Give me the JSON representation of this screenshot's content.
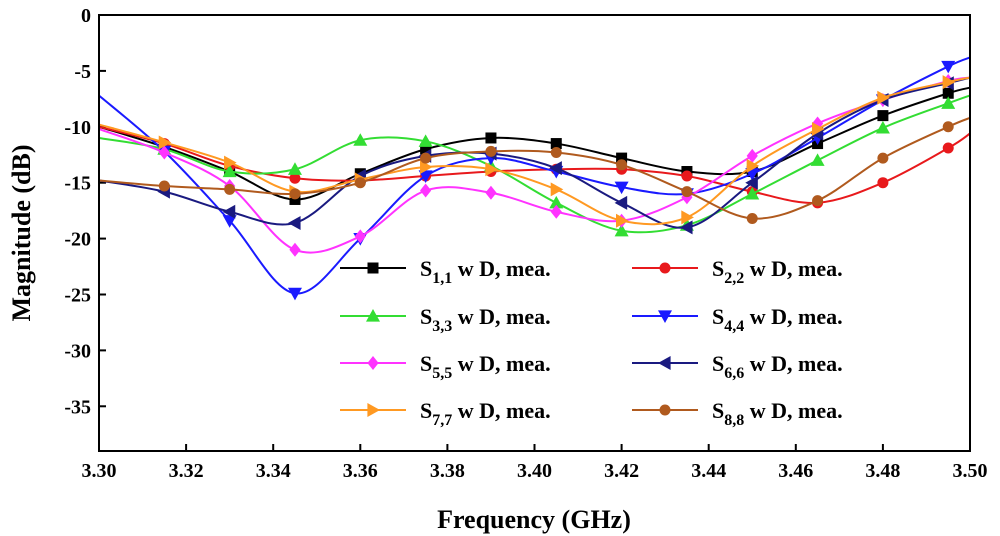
{
  "chart_data": {
    "type": "line",
    "title": "",
    "xlabel": "Frequency (GHz)",
    "ylabel": "Magnitude (dB)",
    "xlim": [
      3.3,
      3.5
    ],
    "ylim": [
      -39,
      0
    ],
    "xticks": [
      3.3,
      3.32,
      3.34,
      3.36,
      3.38,
      3.4,
      3.42,
      3.44,
      3.46,
      3.48,
      3.5
    ],
    "xtick_labels": [
      "3.30",
      "3.32",
      "3.34",
      "3.36",
      "3.38",
      "3.40",
      "3.42",
      "3.44",
      "3.46",
      "3.48",
      "3.50"
    ],
    "yticks": [
      0,
      -5,
      -10,
      -15,
      -20,
      -25,
      -30,
      -35
    ],
    "ytick_labels": [
      "0",
      "-5",
      "-10",
      "-15",
      "-20",
      "-25",
      "-30",
      "-35"
    ],
    "legend_position": "bottom-right",
    "series": [
      {
        "name": "S1,1 w D, mea.",
        "sub": "1,1",
        "color": "#000000",
        "marker": "square",
        "x": [
          3.3,
          3.315,
          3.33,
          3.345,
          3.36,
          3.375,
          3.39,
          3.405,
          3.42,
          3.435,
          3.45,
          3.465,
          3.48,
          3.495,
          3.5
        ],
        "y": [
          -10.0,
          -11.8,
          -14.0,
          -16.5,
          -14.2,
          -12.0,
          -11.0,
          -11.5,
          -12.8,
          -14.0,
          -14.0,
          -11.5,
          -9.0,
          -7.0,
          -6.5
        ]
      },
      {
        "name": "S2,2 w D, mea.",
        "sub": "2,2",
        "color": "#e8191c",
        "marker": "circle",
        "x": [
          3.3,
          3.315,
          3.33,
          3.345,
          3.36,
          3.375,
          3.39,
          3.405,
          3.42,
          3.435,
          3.45,
          3.465,
          3.48,
          3.495,
          3.5
        ],
        "y": [
          -10.0,
          -11.5,
          -13.5,
          -14.6,
          -14.8,
          -14.4,
          -14.0,
          -13.8,
          -13.8,
          -14.4,
          -15.8,
          -16.8,
          -15.0,
          -11.9,
          -10.6
        ]
      },
      {
        "name": "S3,3 w D, mea.",
        "sub": "3,3",
        "color": "#33dd33",
        "marker": "triangle-up",
        "x": [
          3.3,
          3.315,
          3.33,
          3.345,
          3.36,
          3.375,
          3.39,
          3.405,
          3.42,
          3.435,
          3.45,
          3.465,
          3.48,
          3.495,
          3.5
        ],
        "y": [
          -11.0,
          -12.0,
          -14.0,
          -13.8,
          -11.2,
          -11.3,
          -13.5,
          -16.8,
          -19.3,
          -18.8,
          -16.0,
          -13.0,
          -10.1,
          -7.9,
          -7.2
        ]
      },
      {
        "name": "S4,4 w D, mea.",
        "sub": "4,4",
        "color": "#1a1aff",
        "marker": "triangle-down",
        "x": [
          3.3,
          3.315,
          3.33,
          3.345,
          3.36,
          3.375,
          3.39,
          3.405,
          3.42,
          3.435,
          3.45,
          3.465,
          3.48,
          3.495,
          3.5
        ],
        "y": [
          -7.2,
          -12.2,
          -18.4,
          -24.9,
          -20.0,
          -14.4,
          -12.8,
          -14.0,
          -15.4,
          -16.0,
          -14.2,
          -11.0,
          -7.6,
          -4.6,
          -3.8
        ]
      },
      {
        "name": "S5,5 w D, mea.",
        "sub": "5,5",
        "color": "#ff33ff",
        "marker": "diamond",
        "x": [
          3.3,
          3.315,
          3.33,
          3.345,
          3.36,
          3.375,
          3.39,
          3.405,
          3.42,
          3.435,
          3.45,
          3.465,
          3.48,
          3.495,
          3.5
        ],
        "y": [
          -10.2,
          -12.3,
          -15.3,
          -21.0,
          -19.8,
          -15.7,
          -15.9,
          -17.6,
          -18.4,
          -16.3,
          -12.6,
          -9.7,
          -7.6,
          -5.9,
          -5.6
        ]
      },
      {
        "name": "S6,6 w D, mea.",
        "sub": "6,6",
        "color": "#1a1a80",
        "marker": "triangle-left",
        "x": [
          3.3,
          3.315,
          3.33,
          3.345,
          3.36,
          3.375,
          3.39,
          3.405,
          3.42,
          3.435,
          3.45,
          3.465,
          3.48,
          3.495,
          3.5
        ],
        "y": [
          -14.8,
          -15.8,
          -17.6,
          -18.6,
          -14.4,
          -12.6,
          -12.4,
          -13.7,
          -16.8,
          -19.0,
          -15.0,
          -10.6,
          -7.6,
          -6.1,
          -5.6
        ]
      },
      {
        "name": "S7,7 w D, mea.",
        "sub": "7,7",
        "color": "#ff9922",
        "marker": "triangle-right",
        "x": [
          3.3,
          3.315,
          3.33,
          3.345,
          3.36,
          3.375,
          3.39,
          3.405,
          3.42,
          3.435,
          3.45,
          3.465,
          3.48,
          3.495,
          3.5
        ],
        "y": [
          -9.8,
          -11.4,
          -13.2,
          -15.8,
          -14.7,
          -13.6,
          -13.8,
          -15.6,
          -18.4,
          -18.1,
          -13.5,
          -10.2,
          -7.4,
          -6.0,
          -5.6
        ]
      },
      {
        "name": "S8,8 w D, mea.",
        "sub": "8,8",
        "color": "#b05a1e",
        "marker": "circle",
        "x": [
          3.3,
          3.315,
          3.33,
          3.345,
          3.36,
          3.375,
          3.39,
          3.405,
          3.42,
          3.435,
          3.45,
          3.465,
          3.48,
          3.495,
          3.5
        ],
        "y": [
          -14.8,
          -15.3,
          -15.6,
          -16.0,
          -15.0,
          -12.8,
          -12.2,
          -12.3,
          -13.4,
          -15.8,
          -18.2,
          -16.6,
          -12.8,
          -10.0,
          -9.2
        ]
      }
    ]
  }
}
